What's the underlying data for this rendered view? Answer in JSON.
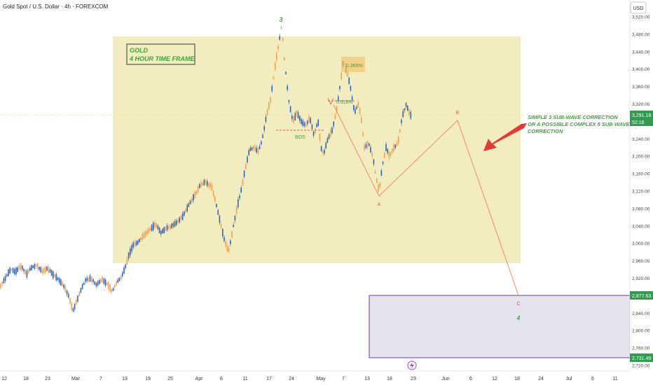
{
  "header": {
    "symbol_title": "Gold Spot / U.S. Dollar · 4h · FOREXCOM"
  },
  "currency_label": "USD",
  "colors": {
    "bull": "#2e63c4",
    "bear": "#f5a04c",
    "zone_fill": "#f1ecb8",
    "target_fill": "#e5e3ec",
    "target_border": "#7b5bbf",
    "wave_line": "#f28a6a",
    "arrow": "#e53935",
    "label_green": "#3aa63a",
    "price_badge": "#2e9e4e"
  },
  "price_badges": {
    "current": "3,291.18",
    "countdown": "52:16",
    "target_top": "2,877.63",
    "target_bottom": "2,731.49"
  },
  "annotations": {
    "gold_box_line1": "GOLD",
    "gold_box_line2": "4 HOUR TIME FRAME",
    "wave_3": "3",
    "fib_0365": "0.365%",
    "fib_0618": "0.618%",
    "bos": "BOS",
    "wave_a": "A",
    "wave_b": "B",
    "wave_c": "C",
    "wave_4": "4",
    "note_line1": "SIMPLE 3 SUB-WAVE CORRECTION",
    "note_line2": "OR A POSSIBLE COMPLEX 5 SUB-WAVE",
    "note_line3": "CORRECTION"
  },
  "chart_data": {
    "type": "candlestick",
    "title": "Gold Spot / U.S. Dollar · 4h · FOREXCOM",
    "y_axis_label": "USD",
    "y_ticks": [
      2720,
      2760,
      2800,
      2840,
      2880,
      2920,
      2960,
      3000,
      3040,
      3080,
      3120,
      3160,
      3200,
      3240,
      3280,
      3320,
      3360,
      3400,
      3440,
      3480,
      3520
    ],
    "y_tick_labels": [
      "2,720.00",
      "2,760.00",
      "2,800.00",
      "2,840.00",
      "2,880.00",
      "2,920.00",
      "2,960.00",
      "3,000.00",
      "3,040.00",
      "3,080.00",
      "3,120.00",
      "3,160.00",
      "3,200.00",
      "3,240.00",
      "3,280.00",
      "3,320.00",
      "3,360.00",
      "3,400.00",
      "3,440.00",
      "3,480.00",
      "3,520.00"
    ],
    "x_tick_labels": [
      "12",
      "18",
      "23",
      "Mar",
      "7",
      "13",
      "19",
      "25",
      "Apr",
      "6",
      "11",
      "17",
      "24",
      "May",
      "7",
      "13",
      "18",
      "23",
      "Jun",
      "6",
      "12",
      "18",
      "24",
      "Jul",
      "6",
      "11"
    ],
    "price_path": [
      [
        0,
        2900
      ],
      [
        8,
        2922
      ],
      [
        15,
        2940
      ],
      [
        22,
        2935
      ],
      [
        30,
        2948
      ],
      [
        38,
        2930
      ],
      [
        45,
        2945
      ],
      [
        53,
        2950
      ],
      [
        60,
        2935
      ],
      [
        68,
        2942
      ],
      [
        75,
        2930
      ],
      [
        82,
        2920
      ],
      [
        90,
        2905
      ],
      [
        98,
        2880
      ],
      [
        104,
        2845
      ],
      [
        110,
        2870
      ],
      [
        116,
        2895
      ],
      [
        122,
        2915
      ],
      [
        130,
        2920
      ],
      [
        138,
        2905
      ],
      [
        146,
        2918
      ],
      [
        154,
        2905
      ],
      [
        160,
        2890
      ],
      [
        166,
        2908
      ],
      [
        172,
        2920
      ],
      [
        178,
        2940
      ],
      [
        184,
        2975
      ],
      [
        190,
        2995
      ],
      [
        198,
        3005
      ],
      [
        206,
        3020
      ],
      [
        214,
        3030
      ],
      [
        222,
        3045
      ],
      [
        230,
        3025
      ],
      [
        238,
        3035
      ],
      [
        246,
        3040
      ],
      [
        254,
        3050
      ],
      [
        262,
        3065
      ],
      [
        270,
        3090
      ],
      [
        278,
        3110
      ],
      [
        286,
        3135
      ],
      [
        294,
        3140
      ],
      [
        302,
        3130
      ],
      [
        308,
        3095
      ],
      [
        314,
        3050
      ],
      [
        320,
        3010
      ],
      [
        326,
        2980
      ],
      [
        332,
        3030
      ],
      [
        338,
        3080
      ],
      [
        344,
        3120
      ],
      [
        350,
        3170
      ],
      [
        356,
        3215
      ],
      [
        362,
        3220
      ],
      [
        368,
        3210
      ],
      [
        374,
        3235
      ],
      [
        380,
        3290
      ],
      [
        386,
        3330
      ],
      [
        392,
        3400
      ],
      [
        398,
        3460
      ],
      [
        402,
        3500
      ],
      [
        406,
        3420
      ],
      [
        412,
        3330
      ],
      [
        418,
        3280
      ],
      [
        424,
        3300
      ],
      [
        430,
        3280
      ],
      [
        436,
        3270
      ],
      [
        442,
        3290
      ],
      [
        448,
        3250
      ],
      [
        454,
        3280
      ],
      [
        458,
        3220
      ],
      [
        462,
        3205
      ],
      [
        468,
        3240
      ],
      [
        474,
        3260
      ],
      [
        480,
        3300
      ],
      [
        486,
        3370
      ],
      [
        490,
        3420
      ],
      [
        495,
        3395
      ],
      [
        500,
        3360
      ],
      [
        506,
        3300
      ],
      [
        512,
        3320
      ],
      [
        516,
        3280
      ],
      [
        520,
        3220
      ],
      [
        526,
        3230
      ],
      [
        532,
        3200
      ],
      [
        537,
        3150
      ],
      [
        541,
        3120
      ],
      [
        546,
        3180
      ],
      [
        551,
        3220
      ],
      [
        556,
        3200
      ],
      [
        562,
        3220
      ],
      [
        568,
        3230
      ],
      [
        574,
        3290
      ],
      [
        580,
        3320
      ],
      [
        584,
        3300
      ],
      [
        588,
        3290
      ]
    ],
    "levels": {
      "current_price": 3291.18,
      "target_zone_high": 2877.63,
      "target_zone_low": 2731.49,
      "bos_level": 3264,
      "fib_0618_level": 3310,
      "fib_0365_level": 3410
    },
    "wave_points": {
      "wave_3": 3500,
      "wave_a": 3120,
      "wave_b": 3284,
      "wave_c": 2850
    }
  }
}
